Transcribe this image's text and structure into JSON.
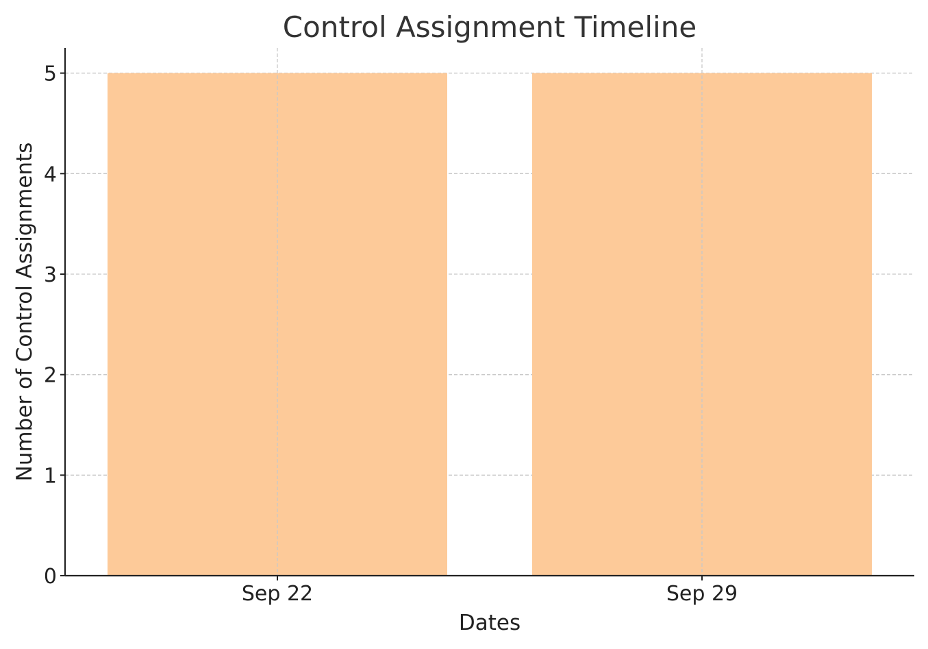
{
  "chart_data": {
    "type": "bar",
    "title": "Control Assignment Timeline",
    "xlabel": "Dates",
    "ylabel": "Number of Control Assignments",
    "categories": [
      "Sep 22",
      "Sep 29"
    ],
    "values": [
      5,
      5
    ],
    "ylim": [
      0,
      5.25
    ],
    "yticks": [
      0,
      1,
      2,
      3,
      4,
      5
    ],
    "grid": true,
    "bar_color": "#fdca99",
    "legend": "none"
  }
}
